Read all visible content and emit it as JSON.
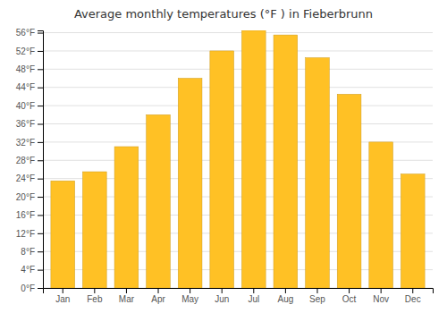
{
  "chart_data": {
    "type": "bar",
    "title": "Average monthly temperatures (°F ) in Fieberbrunn",
    "categories": [
      "Jan",
      "Feb",
      "Mar",
      "Apr",
      "May",
      "Jun",
      "Jul",
      "Aug",
      "Sep",
      "Oct",
      "Nov",
      "Dec"
    ],
    "values": [
      23.5,
      25.5,
      31.0,
      38.0,
      46.0,
      52.0,
      56.5,
      55.5,
      50.5,
      42.5,
      32.0,
      25.0
    ],
    "color": "#FFC125",
    "ylim": [
      0,
      56.5
    ],
    "yticks": [
      {
        "value": 0,
        "label": "0°F"
      },
      {
        "value": 4,
        "label": "4°F"
      },
      {
        "value": 8,
        "label": "8°F"
      },
      {
        "value": 12,
        "label": "12°F"
      },
      {
        "value": 16,
        "label": "16°F"
      },
      {
        "value": 20,
        "label": "20°F"
      },
      {
        "value": 24,
        "label": "24°F"
      },
      {
        "value": 28,
        "label": "28°F"
      },
      {
        "value": 32,
        "label": "32°F"
      },
      {
        "value": 36,
        "label": "36°F"
      },
      {
        "value": 40,
        "label": "40°F"
      },
      {
        "value": 44,
        "label": "44°F"
      },
      {
        "value": 48,
        "label": "48°F"
      },
      {
        "value": 52,
        "label": "52°F"
      },
      {
        "value": 56,
        "label": "56°F"
      }
    ],
    "grid": true
  }
}
